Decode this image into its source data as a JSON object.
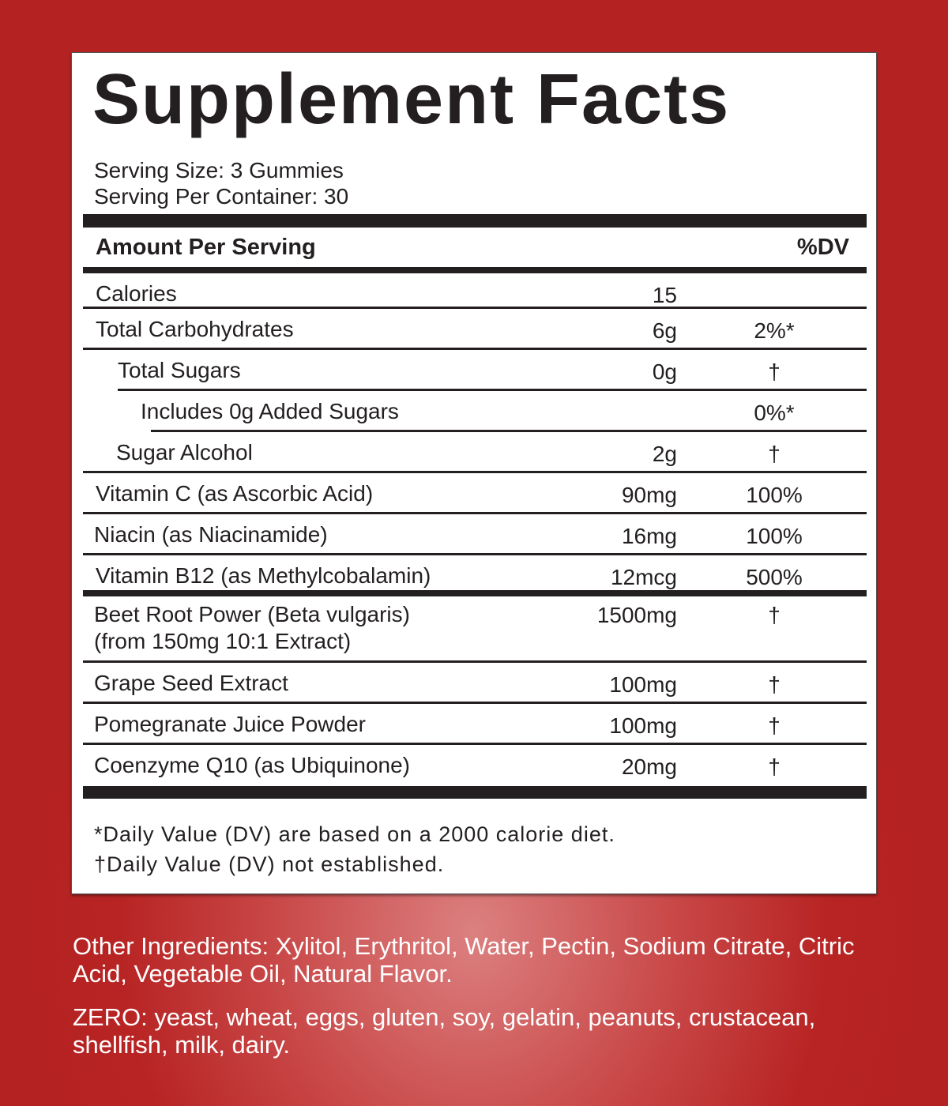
{
  "title": "Supplement Facts",
  "serving_size": "Serving Size: 3 Gummies",
  "servings_per_container": "Serving Per Container: 30",
  "header": {
    "amount": "Amount Per Serving",
    "dv": "%DV"
  },
  "rows": [
    {
      "name": "Calories",
      "amount": "15",
      "dv": ""
    },
    {
      "name": "Total Carbohydrates",
      "amount": "6g",
      "dv": "2%*"
    },
    {
      "name": "Total Sugars",
      "amount": "0g",
      "dv": "†"
    },
    {
      "name": "Includes 0g Added Sugars",
      "amount": "",
      "dv": "0%*"
    },
    {
      "name": "Sugar Alcohol",
      "amount": "2g",
      "dv": "†"
    },
    {
      "name": "Vitamin C (as Ascorbic Acid)",
      "amount": "90mg",
      "dv": "100%"
    },
    {
      "name": "Niacin (as Niacinamide)",
      "amount": "16mg",
      "dv": "100%"
    },
    {
      "name": "Vitamin B12 (as Methylcobalamin)",
      "amount": "12mcg",
      "dv": "500%"
    },
    {
      "name": "Beet Root Power (Beta vulgaris)",
      "name2": "(from 150mg 10:1 Extract)",
      "amount": "1500mg",
      "dv": "†"
    },
    {
      "name": "Grape Seed Extract",
      "amount": "100mg",
      "dv": "†"
    },
    {
      "name": "Pomegranate Juice Powder",
      "amount": "100mg",
      "dv": "†"
    },
    {
      "name": "Coenzyme Q10 (as Ubiquinone)",
      "amount": "20mg",
      "dv": "†"
    }
  ],
  "footnotes": [
    "*Daily Value (DV) are based on a 2000 calorie diet.",
    "†Daily Value (DV) not established."
  ],
  "other_ingredients": "Other Ingredients: Xylitol, Erythritol, Water, Pectin, Sodium Citrate, Citric Acid, Vegetable Oil, Natural Flavor.",
  "zero": "ZERO: yeast, wheat, eggs, gluten, soy, gelatin, peanuts, crustacean, shellfish, milk, dairy.",
  "colors": {
    "background": "#b82424",
    "text": "#231f20",
    "panel": "#ffffff"
  }
}
